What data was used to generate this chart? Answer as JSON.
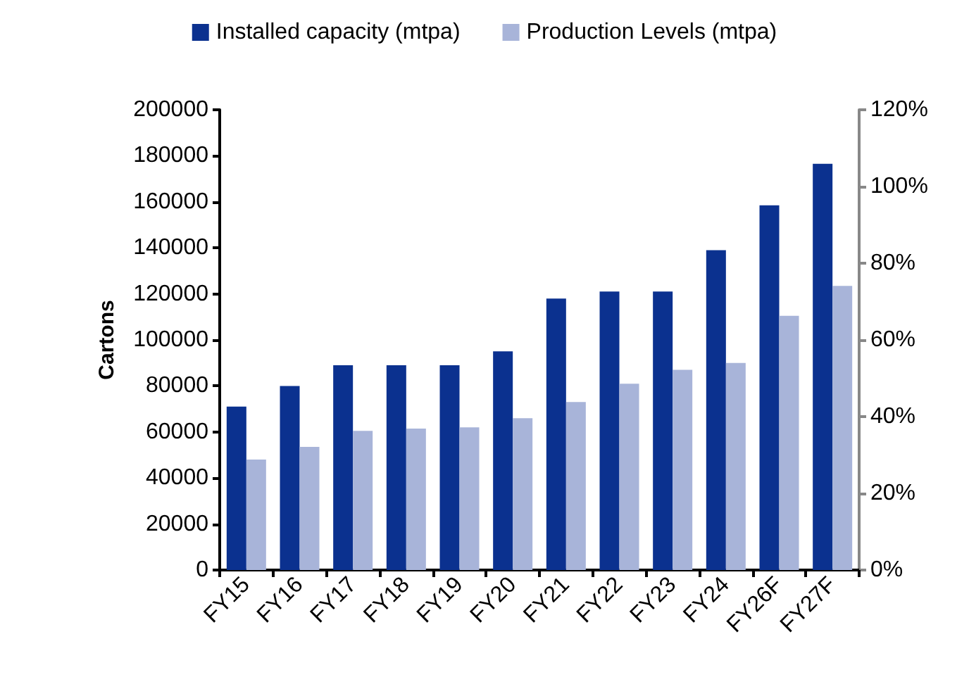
{
  "chart_data": {
    "type": "bar",
    "ylabel": "Cartons",
    "categories": [
      "FY15",
      "FY16",
      "FY17",
      "FY18",
      "FY19",
      "FY20",
      "FY21",
      "FY22",
      "FY23",
      "FY24",
      "FY26F",
      "FY27F"
    ],
    "series": [
      {
        "name": "Installed capacity (mtpa)",
        "color": "#0b318f",
        "values": [
          71000,
          80000,
          89000,
          89000,
          89000,
          95000,
          118000,
          121000,
          121000,
          139000,
          158500,
          176500
        ]
      },
      {
        "name": "Production Levels (mtpa)",
        "color": "#a8b4d9",
        "values": [
          48000,
          53500,
          60500,
          61500,
          62000,
          66000,
          73000,
          81000,
          87000,
          90000,
          110500,
          123500
        ]
      }
    ],
    "ylim": [
      0,
      200000
    ],
    "yticks": [
      0,
      20000,
      40000,
      60000,
      80000,
      100000,
      120000,
      140000,
      160000,
      180000,
      200000
    ],
    "y2lim": [
      0,
      120
    ],
    "y2ticks": [
      {
        "value": 0,
        "label": "0%"
      },
      {
        "value": 20,
        "label": "20%"
      },
      {
        "value": 40,
        "label": "40%"
      },
      {
        "value": 60,
        "label": "60%"
      },
      {
        "value": 80,
        "label": "80%"
      },
      {
        "value": 100,
        "label": "100%"
      },
      {
        "value": 120,
        "label": "120%"
      }
    ],
    "legend": "top",
    "grid": false
  }
}
